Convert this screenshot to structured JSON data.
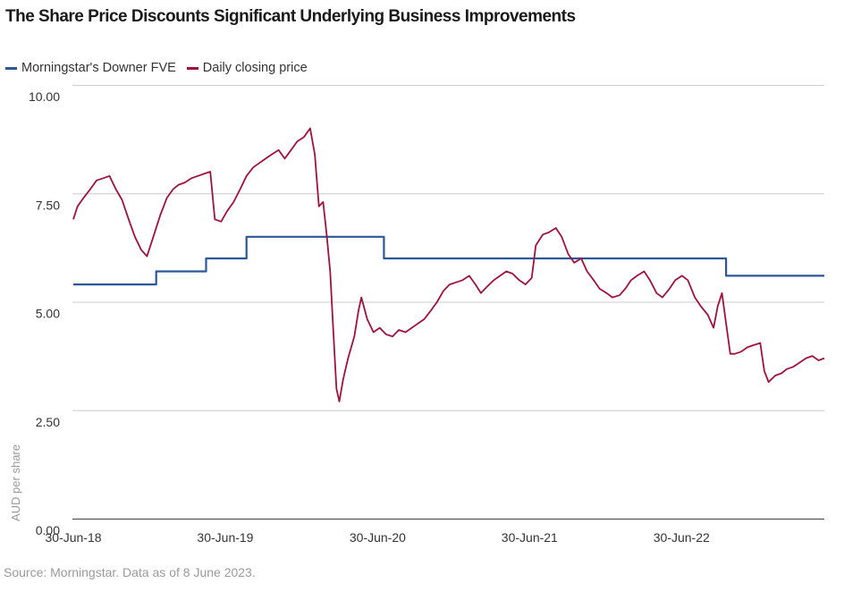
{
  "chart_data": {
    "type": "line",
    "title": "The Share Price Discounts Significant Underlying Business Improvements",
    "ylabel": "AUD per share",
    "xlabel": "",
    "ylim": [
      0,
      10
    ],
    "yticks": [
      "0.00",
      "2.50",
      "5.00",
      "7.50",
      "10.00"
    ],
    "ytick_values": [
      0,
      2.5,
      5,
      7.5,
      10
    ],
    "xlim": [
      "2018-06-30",
      "2023-06-08"
    ],
    "xticks": [
      "30-Jun-18",
      "30-Jun-19",
      "30-Jun-20",
      "30-Jun-21",
      "30-Jun-22"
    ],
    "xtick_dates": [
      "2018-06-30",
      "2019-06-30",
      "2020-06-30",
      "2021-06-30",
      "2022-06-30"
    ],
    "grid": "horizontal",
    "legend_position": "top-left",
    "series": [
      {
        "name": "Morningstar's Downer FVE",
        "color": "#2b5797",
        "style": "step",
        "points": [
          [
            "2018-06-30",
            5.4
          ],
          [
            "2019-01-15",
            5.7
          ],
          [
            "2019-05-15",
            6.0
          ],
          [
            "2019-08-20",
            6.5
          ],
          [
            "2020-07-15",
            6.0
          ],
          [
            "2022-10-15",
            5.6
          ],
          [
            "2023-06-08",
            5.6
          ]
        ]
      },
      {
        "name": "Daily closing price",
        "color": "#a0123c",
        "style": "line",
        "points": [
          [
            "2018-06-30",
            6.9
          ],
          [
            "2018-07-10",
            7.2
          ],
          [
            "2018-07-25",
            7.4
          ],
          [
            "2018-08-10",
            7.6
          ],
          [
            "2018-08-25",
            7.8
          ],
          [
            "2018-09-10",
            7.85
          ],
          [
            "2018-09-25",
            7.9
          ],
          [
            "2018-10-10",
            7.6
          ],
          [
            "2018-10-25",
            7.35
          ],
          [
            "2018-11-10",
            6.9
          ],
          [
            "2018-11-25",
            6.5
          ],
          [
            "2018-12-10",
            6.2
          ],
          [
            "2018-12-24",
            6.05
          ],
          [
            "2019-01-10",
            6.55
          ],
          [
            "2019-01-25",
            7.0
          ],
          [
            "2019-02-10",
            7.4
          ],
          [
            "2019-02-25",
            7.6
          ],
          [
            "2019-03-10",
            7.7
          ],
          [
            "2019-03-25",
            7.75
          ],
          [
            "2019-04-10",
            7.85
          ],
          [
            "2019-04-25",
            7.9
          ],
          [
            "2019-05-10",
            7.95
          ],
          [
            "2019-05-25",
            8.0
          ],
          [
            "2019-06-05",
            6.9
          ],
          [
            "2019-06-20",
            6.85
          ],
          [
            "2019-07-05",
            7.1
          ],
          [
            "2019-07-20",
            7.3
          ],
          [
            "2019-08-05",
            7.6
          ],
          [
            "2019-08-20",
            7.9
          ],
          [
            "2019-09-05",
            8.1
          ],
          [
            "2019-09-20",
            8.2
          ],
          [
            "2019-10-05",
            8.3
          ],
          [
            "2019-10-20",
            8.4
          ],
          [
            "2019-11-05",
            8.5
          ],
          [
            "2019-11-20",
            8.3
          ],
          [
            "2019-12-05",
            8.5
          ],
          [
            "2019-12-20",
            8.7
          ],
          [
            "2020-01-05",
            8.8
          ],
          [
            "2020-01-20",
            9.0
          ],
          [
            "2020-01-31",
            8.4
          ],
          [
            "2020-02-10",
            7.2
          ],
          [
            "2020-02-20",
            7.3
          ],
          [
            "2020-02-28",
            6.6
          ],
          [
            "2020-03-08",
            5.7
          ],
          [
            "2020-03-15",
            4.4
          ],
          [
            "2020-03-23",
            3.0
          ],
          [
            "2020-03-30",
            2.7
          ],
          [
            "2020-04-08",
            3.2
          ],
          [
            "2020-04-20",
            3.7
          ],
          [
            "2020-05-05",
            4.2
          ],
          [
            "2020-05-15",
            4.8
          ],
          [
            "2020-05-22",
            5.1
          ],
          [
            "2020-06-05",
            4.6
          ],
          [
            "2020-06-20",
            4.3
          ],
          [
            "2020-07-05",
            4.4
          ],
          [
            "2020-07-20",
            4.25
          ],
          [
            "2020-08-05",
            4.2
          ],
          [
            "2020-08-20",
            4.35
          ],
          [
            "2020-09-05",
            4.3
          ],
          [
            "2020-09-20",
            4.4
          ],
          [
            "2020-10-05",
            4.5
          ],
          [
            "2020-10-20",
            4.6
          ],
          [
            "2020-11-05",
            4.8
          ],
          [
            "2020-11-20",
            5.0
          ],
          [
            "2020-12-05",
            5.25
          ],
          [
            "2020-12-20",
            5.4
          ],
          [
            "2021-01-05",
            5.45
          ],
          [
            "2021-01-20",
            5.5
          ],
          [
            "2021-02-05",
            5.6
          ],
          [
            "2021-02-20",
            5.4
          ],
          [
            "2021-03-05",
            5.2
          ],
          [
            "2021-03-20",
            5.35
          ],
          [
            "2021-04-05",
            5.5
          ],
          [
            "2021-04-20",
            5.6
          ],
          [
            "2021-05-05",
            5.7
          ],
          [
            "2021-05-20",
            5.65
          ],
          [
            "2021-06-05",
            5.5
          ],
          [
            "2021-06-20",
            5.4
          ],
          [
            "2021-07-05",
            5.55
          ],
          [
            "2021-07-15",
            6.3
          ],
          [
            "2021-08-01",
            6.55
          ],
          [
            "2021-08-15",
            6.6
          ],
          [
            "2021-09-01",
            6.7
          ],
          [
            "2021-09-15",
            6.5
          ],
          [
            "2021-10-01",
            6.1
          ],
          [
            "2021-10-15",
            5.9
          ],
          [
            "2021-11-01",
            6.0
          ],
          [
            "2021-11-15",
            5.7
          ],
          [
            "2021-12-01",
            5.5
          ],
          [
            "2021-12-15",
            5.3
          ],
          [
            "2022-01-01",
            5.2
          ],
          [
            "2022-01-15",
            5.1
          ],
          [
            "2022-02-01",
            5.15
          ],
          [
            "2022-02-15",
            5.3
          ],
          [
            "2022-03-01",
            5.5
          ],
          [
            "2022-03-15",
            5.6
          ],
          [
            "2022-04-01",
            5.7
          ],
          [
            "2022-04-15",
            5.5
          ],
          [
            "2022-05-01",
            5.2
          ],
          [
            "2022-05-15",
            5.1
          ],
          [
            "2022-06-01",
            5.3
          ],
          [
            "2022-06-15",
            5.5
          ],
          [
            "2022-07-01",
            5.6
          ],
          [
            "2022-07-15",
            5.5
          ],
          [
            "2022-08-01",
            5.1
          ],
          [
            "2022-08-15",
            4.9
          ],
          [
            "2022-09-01",
            4.7
          ],
          [
            "2022-09-15",
            4.4
          ],
          [
            "2022-09-25",
            4.9
          ],
          [
            "2022-10-05",
            5.2
          ],
          [
            "2022-10-15",
            4.5
          ],
          [
            "2022-10-25",
            3.8
          ],
          [
            "2022-11-05",
            3.8
          ],
          [
            "2022-11-20",
            3.85
          ],
          [
            "2022-12-05",
            3.95
          ],
          [
            "2022-12-20",
            4.0
          ],
          [
            "2023-01-05",
            4.05
          ],
          [
            "2023-01-15",
            3.4
          ],
          [
            "2023-01-25",
            3.15
          ],
          [
            "2023-02-10",
            3.3
          ],
          [
            "2023-02-25",
            3.35
          ],
          [
            "2023-03-10",
            3.45
          ],
          [
            "2023-03-25",
            3.5
          ],
          [
            "2023-04-10",
            3.6
          ],
          [
            "2023-04-25",
            3.7
          ],
          [
            "2023-05-10",
            3.75
          ],
          [
            "2023-05-25",
            3.65
          ],
          [
            "2023-06-08",
            3.7
          ]
        ]
      }
    ],
    "source": "Source: Morningstar. Data as of 8 June 2023."
  }
}
